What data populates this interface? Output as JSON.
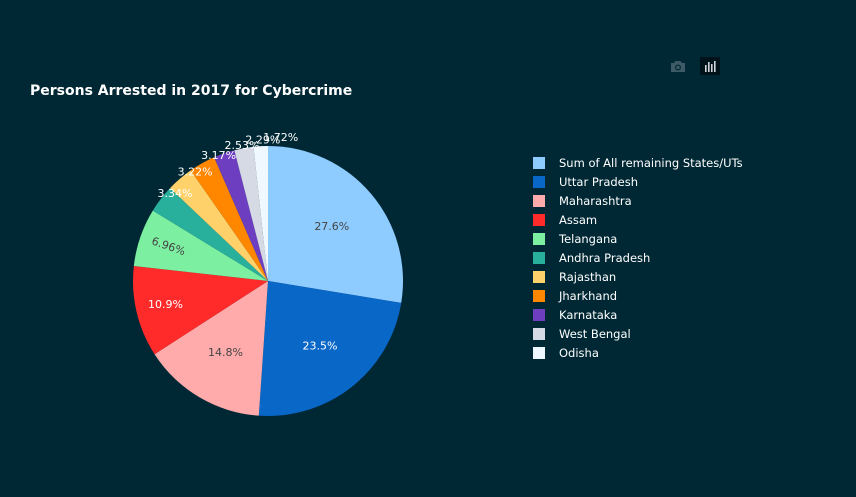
{
  "toolbar": {
    "camera_icon": "camera-icon",
    "chart_icon": "bar-chart-icon"
  },
  "chart_data": {
    "type": "pie",
    "title": "Persons Arrested in 2017 for Cybercrime",
    "legend_position": "right",
    "slices": [
      {
        "label": "Sum of All remaining States/UTs",
        "value": 27.6,
        "text": "27.6%",
        "color": "#8ecbff",
        "text_color": "#444444"
      },
      {
        "label": "Uttar Pradesh",
        "value": 23.5,
        "text": "23.5%",
        "color": "#0967c8",
        "text_color": "#ffffff"
      },
      {
        "label": "Maharashtra",
        "value": 14.8,
        "text": "14.8%",
        "color": "#ffabab",
        "text_color": "#444444"
      },
      {
        "label": "Assam",
        "value": 10.9,
        "text": "10.9%",
        "color": "#ff2b2b",
        "text_color": "#ffffff"
      },
      {
        "label": "Telangana",
        "value": 6.96,
        "text": "6.96%",
        "color": "#7defa1",
        "text_color": "#444444"
      },
      {
        "label": "Andhra Pradesh",
        "value": 3.34,
        "text": "3.34%",
        "color": "#29b09d",
        "text_color": "#444444"
      },
      {
        "label": "Rajasthan",
        "value": 3.22,
        "text": "3.22%",
        "color": "#ffd16a",
        "text_color": "#444444"
      },
      {
        "label": "Jharkhand",
        "value": 3.17,
        "text": "3.17%",
        "color": "#ff8700",
        "text_color": "#444444"
      },
      {
        "label": "Karnataka",
        "value": 2.53,
        "text": "2.53%",
        "color": "#6d3fc0",
        "text_color": "#ffffff"
      },
      {
        "label": "West Bengal",
        "value": 2.29,
        "text": "2.29%",
        "color": "#d5dae5",
        "text_color": "#ffffff"
      },
      {
        "label": "Odisha",
        "value": 1.72,
        "text": "1.72%",
        "color": "#f0f8ff",
        "text_color": "#ffffff"
      }
    ]
  }
}
